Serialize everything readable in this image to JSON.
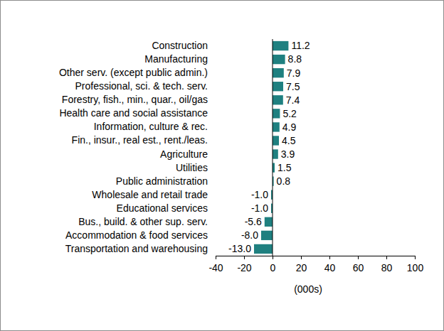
{
  "chart_data": {
    "type": "bar",
    "orientation": "horizontal",
    "categories": [
      "Construction",
      "Manufacturing",
      "Other serv. (except public admin.)",
      "Professional, sci. & tech. serv.",
      "Forestry, fish., min., quar., oil/gas",
      "Health care and social assistance",
      "Information, culture & rec.",
      "Fin., insur., real est., rent./leas.",
      "Agriculture",
      "Utilities",
      "Public administration",
      "Wholesale and retail trade",
      "Educational services",
      "Bus., build. & other sup. serv.",
      "Accommodation & food services",
      "Transportation and warehousing"
    ],
    "values": [
      11.2,
      8.8,
      7.9,
      7.5,
      7.4,
      5.2,
      4.9,
      4.5,
      3.9,
      1.5,
      0.8,
      -1.0,
      -1.0,
      -5.6,
      -8.0,
      -13.0
    ],
    "value_labels": [
      "11.2",
      "8.8",
      "7.9",
      "7.5",
      "7.4",
      "5.2",
      "4.9",
      "4.5",
      "3.9",
      "1.5",
      "0.8",
      "-1.0",
      "-1.0",
      "-5.6",
      "-8.0",
      "-13.0"
    ],
    "data_labels": true,
    "color": "#1f8080",
    "xlabel": "(000s)",
    "xlim": [
      -40,
      100
    ],
    "xticks": [
      -40,
      -20,
      0,
      20,
      40,
      60,
      80,
      100
    ],
    "grid": false
  }
}
